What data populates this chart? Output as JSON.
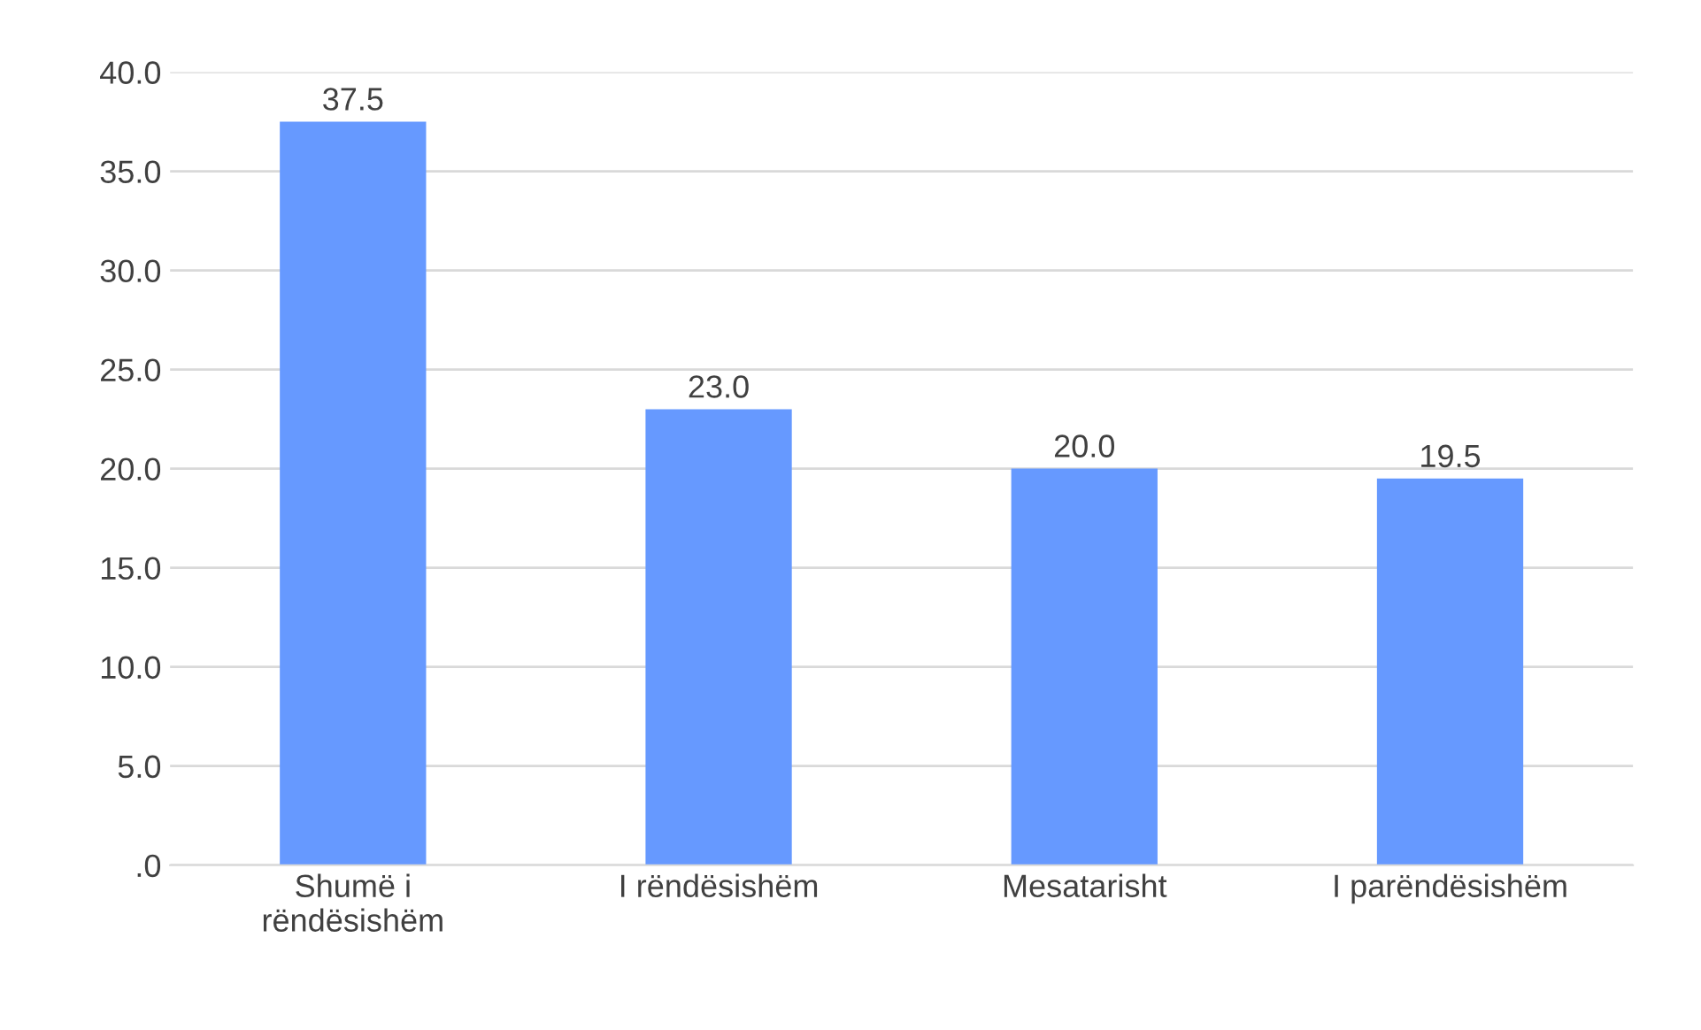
{
  "chart_data": {
    "type": "bar",
    "categories": [
      "Shumë i\nrëndësishëm",
      "I rëndësishëm",
      "Mesatarisht",
      "I parëndësishëm"
    ],
    "values": [
      37.5,
      23.0,
      20.0,
      19.5
    ],
    "color": "#6699ff",
    "ylim": [
      0,
      40
    ],
    "yticks": [
      {
        "value": 0,
        "label": ".0"
      },
      {
        "value": 5,
        "label": "5.0"
      },
      {
        "value": 10,
        "label": "10.0"
      },
      {
        "value": 15,
        "label": "15.0"
      },
      {
        "value": 20,
        "label": "20.0"
      },
      {
        "value": 25,
        "label": "25.0"
      },
      {
        "value": 30,
        "label": "30.0"
      },
      {
        "value": 35,
        "label": "35.0"
      },
      {
        "value": 40,
        "label": "40.0"
      }
    ],
    "grid": "y",
    "value_labels": [
      "37.5",
      "23.0",
      "20.0",
      "19.5"
    ]
  }
}
